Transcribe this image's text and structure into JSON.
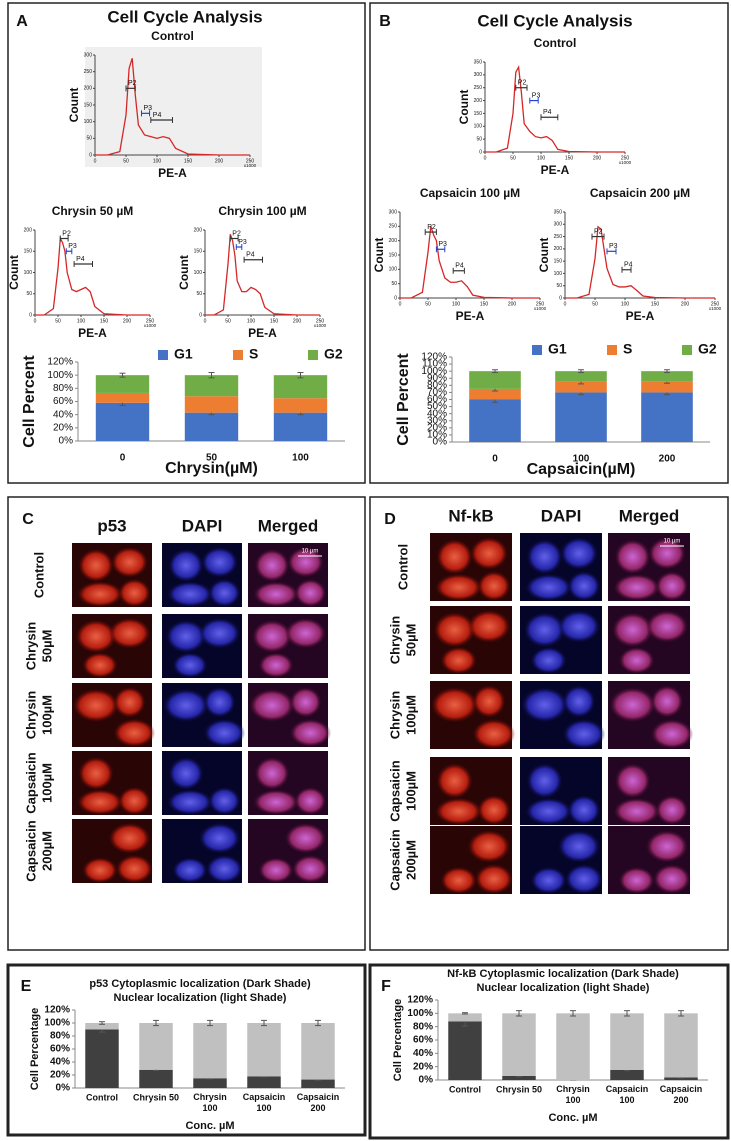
{
  "panels": [
    {
      "label": "A",
      "heading": "Cell Cycle Analysis"
    },
    {
      "label": "B",
      "heading": "Cell Cycle Analysis"
    },
    {
      "label": "C"
    },
    {
      "label": "D"
    },
    {
      "label": "E"
    },
    {
      "label": "F"
    }
  ],
  "chart_data": [
    {
      "type": "line",
      "title": "Control",
      "x_label": "PE-A",
      "y_label": "Count",
      "x_scale_label": "x1000",
      "color": "#d62728",
      "background": "#efefef",
      "x": [
        0,
        20,
        40,
        50,
        55,
        60,
        65,
        70,
        80,
        90,
        100,
        110,
        120,
        130,
        150,
        200,
        250
      ],
      "values": [
        0,
        0,
        10,
        120,
        260,
        290,
        180,
        90,
        60,
        55,
        50,
        55,
        50,
        20,
        3,
        0,
        0
      ],
      "xlim": [
        0,
        250
      ],
      "xticks": [
        0,
        50,
        100,
        150,
        200,
        250
      ],
      "ylim": [
        0,
        300
      ],
      "yticks": [
        0,
        50,
        100,
        150,
        200,
        250,
        300
      ],
      "gates": [
        {
          "label": "P2",
          "range": [
            50,
            65
          ],
          "y": 200,
          "color": "#333333"
        },
        {
          "label": "P3",
          "range": [
            75,
            88
          ],
          "y": 125,
          "color": "#2244cc"
        },
        {
          "label": "P4",
          "range": [
            90,
            125
          ],
          "y": 105,
          "color": "#333333"
        }
      ]
    },
    {
      "type": "line",
      "title": "Chrysin 50 µM",
      "x_label": "PE-A",
      "y_label": "Count",
      "x_scale_label": "x1000",
      "color": "#d62728",
      "x": [
        0,
        20,
        40,
        50,
        55,
        60,
        65,
        70,
        80,
        90,
        100,
        110,
        120,
        130,
        150,
        200,
        250
      ],
      "values": [
        0,
        0,
        15,
        110,
        180,
        170,
        150,
        100,
        60,
        55,
        60,
        65,
        55,
        20,
        3,
        0,
        0
      ],
      "xlim": [
        0,
        250
      ],
      "xticks": [
        0,
        50,
        100,
        150,
        200,
        250
      ],
      "ylim": [
        0,
        200
      ],
      "yticks": [
        0,
        50,
        100,
        150,
        200
      ],
      "gates": [
        {
          "label": "P2",
          "range": [
            55,
            72
          ],
          "y": 180,
          "color": "#333333"
        },
        {
          "label": "P3",
          "range": [
            68,
            80
          ],
          "y": 150,
          "color": "#2244cc"
        },
        {
          "label": "P4",
          "range": [
            85,
            125
          ],
          "y": 120,
          "color": "#333333"
        }
      ]
    },
    {
      "type": "line",
      "title": "Chrysin 100 µM",
      "x_label": "PE-A",
      "y_label": "Count",
      "x_scale_label": "x1000",
      "color": "#d62728",
      "x": [
        0,
        20,
        40,
        50,
        55,
        60,
        65,
        70,
        80,
        90,
        100,
        110,
        120,
        130,
        150,
        200,
        250
      ],
      "values": [
        0,
        0,
        12,
        120,
        190,
        175,
        140,
        80,
        55,
        55,
        65,
        60,
        50,
        18,
        3,
        0,
        0
      ],
      "xlim": [
        0,
        250
      ],
      "xticks": [
        0,
        50,
        100,
        150,
        200,
        250
      ],
      "ylim": [
        0,
        200
      ],
      "yticks": [
        0,
        50,
        100,
        150,
        200
      ],
      "gates": [
        {
          "label": "P2",
          "range": [
            55,
            72
          ],
          "y": 180,
          "color": "#333333"
        },
        {
          "label": "P3",
          "range": [
            68,
            80
          ],
          "y": 160,
          "color": "#2244cc"
        },
        {
          "label": "P4",
          "range": [
            85,
            125
          ],
          "y": 130,
          "color": "#333333"
        }
      ]
    },
    {
      "type": "bar",
      "stacked": true,
      "x_label": "Chrysin(µM)",
      "y_label": "Cell Percent",
      "categories": [
        "0",
        "50",
        "100"
      ],
      "series": [
        {
          "name": "G1",
          "color": "#4472c4",
          "values": [
            58,
            43,
            43
          ],
          "errors": [
            4,
            3,
            3
          ]
        },
        {
          "name": "S",
          "color": "#ed7d31",
          "values": [
            15,
            25,
            22
          ]
        },
        {
          "name": "G2",
          "color": "#70ad47",
          "values": [
            27,
            32,
            35
          ],
          "errors": [
            3,
            4,
            4
          ]
        }
      ],
      "ylim": [
        0,
        120
      ],
      "yticks": [
        {
          "value": 0,
          "label": "0%"
        },
        {
          "value": 20,
          "label": "20%"
        },
        {
          "value": 40,
          "label": "40%"
        },
        {
          "value": 60,
          "label": "60%"
        },
        {
          "value": 80,
          "label": "80%"
        },
        {
          "value": 100,
          "label": "100%"
        },
        {
          "value": 120,
          "label": "120%"
        }
      ]
    },
    {
      "type": "line",
      "title": "Control",
      "x_label": "PE-A",
      "y_label": "Count",
      "x_scale_label": "x1000",
      "color": "#d62728",
      "x": [
        0,
        20,
        40,
        50,
        55,
        60,
        65,
        70,
        80,
        90,
        100,
        110,
        120,
        130,
        150,
        200,
        250
      ],
      "values": [
        0,
        0,
        15,
        150,
        310,
        330,
        230,
        110,
        80,
        60,
        55,
        60,
        45,
        10,
        2,
        0,
        0
      ],
      "xlim": [
        0,
        250
      ],
      "xticks": [
        0,
        50,
        100,
        150,
        200,
        250
      ],
      "ylim": [
        0,
        350
      ],
      "yticks": [
        0,
        50,
        100,
        150,
        200,
        250,
        300,
        350
      ],
      "gates": [
        {
          "label": "P2",
          "range": [
            55,
            75
          ],
          "y": 250,
          "color": "#333333"
        },
        {
          "label": "P3",
          "range": [
            80,
            95
          ],
          "y": 200,
          "color": "#2244cc"
        },
        {
          "label": "P4",
          "range": [
            100,
            130
          ],
          "y": 135,
          "color": "#333333"
        }
      ]
    },
    {
      "type": "line",
      "title": "Capsaicin 100 µM",
      "x_label": "PE-A",
      "y_label": "Count",
      "x_scale_label": "x1000",
      "color": "#d62728",
      "x": [
        0,
        20,
        40,
        50,
        55,
        60,
        65,
        70,
        80,
        90,
        100,
        110,
        120,
        130,
        150,
        200,
        250
      ],
      "values": [
        0,
        0,
        20,
        160,
        250,
        220,
        200,
        130,
        70,
        55,
        55,
        60,
        40,
        10,
        2,
        0,
        0
      ],
      "xlim": [
        0,
        250
      ],
      "xticks": [
        0,
        50,
        100,
        150,
        200,
        250
      ],
      "ylim": [
        0,
        300
      ],
      "yticks": [
        0,
        50,
        100,
        150,
        200,
        250,
        300
      ],
      "gates": [
        {
          "label": "P2",
          "range": [
            45,
            65
          ],
          "y": 230,
          "color": "#333333"
        },
        {
          "label": "P3",
          "range": [
            65,
            80
          ],
          "y": 170,
          "color": "#2244cc"
        },
        {
          "label": "P4",
          "range": [
            95,
            115
          ],
          "y": 95,
          "color": "#333333"
        }
      ]
    },
    {
      "type": "line",
      "title": "Capsaicin 200 µM",
      "x_label": "PE-A",
      "y_label": "Count",
      "x_scale_label": "x1000",
      "color": "#d62728",
      "x": [
        0,
        20,
        40,
        50,
        55,
        60,
        65,
        70,
        80,
        90,
        100,
        110,
        120,
        130,
        150,
        200,
        250
      ],
      "values": [
        0,
        0,
        15,
        160,
        290,
        280,
        200,
        120,
        55,
        45,
        45,
        50,
        30,
        8,
        2,
        0,
        0
      ],
      "xlim": [
        0,
        250
      ],
      "xticks": [
        0,
        50,
        100,
        150,
        200,
        250
      ],
      "ylim": [
        0,
        350
      ],
      "yticks": [
        0,
        50,
        100,
        150,
        200,
        250,
        300,
        350
      ],
      "gates": [
        {
          "label": "P2",
          "range": [
            45,
            65
          ],
          "y": 250,
          "color": "#333333"
        },
        {
          "label": "P3",
          "range": [
            70,
            85
          ],
          "y": 190,
          "color": "#2244cc"
        },
        {
          "label": "P4",
          "range": [
            95,
            110
          ],
          "y": 115,
          "color": "#333333"
        }
      ]
    },
    {
      "type": "bar",
      "stacked": true,
      "x_label": "Capsaicin(µM)",
      "y_label": "Cell Percent",
      "categories": [
        "0",
        "100",
        "200"
      ],
      "series": [
        {
          "name": "G1",
          "color": "#4472c4",
          "values": [
            60,
            70,
            70
          ],
          "errors": [
            4,
            3,
            3
          ]
        },
        {
          "name": "S",
          "color": "#ed7d31",
          "values": [
            15,
            15,
            15
          ],
          "errors": [
            3,
            3,
            2
          ]
        },
        {
          "name": "G2",
          "color": "#70ad47",
          "values": [
            25,
            15,
            15
          ],
          "errors": [
            2,
            2,
            2
          ]
        }
      ],
      "ylim": [
        0,
        120
      ],
      "yticks": [
        {
          "value": 0,
          "label": "0%"
        },
        {
          "value": 10,
          "label": "10%"
        },
        {
          "value": 20,
          "label": "20%"
        },
        {
          "value": 30,
          "label": "30%"
        },
        {
          "value": 40,
          "label": "40%"
        },
        {
          "value": 50,
          "label": "50%"
        },
        {
          "value": 60,
          "label": "60%"
        },
        {
          "value": 70,
          "label": "70%"
        },
        {
          "value": 80,
          "label": "80%"
        },
        {
          "value": 90,
          "label": "90%"
        },
        {
          "value": 100,
          "label": "100%"
        },
        {
          "value": 110,
          "label": "110%"
        },
        {
          "value": 120,
          "label": "120%"
        }
      ]
    },
    {
      "type": "bar",
      "stacked": true,
      "title": "p53 Cytoplasmic localization (Dark Shade)",
      "subtitle": "Nuclear localization (light Shade)",
      "x_label": "Conc. µM",
      "y_label": "Cell Percentage",
      "categories": [
        "Control",
        "Chrysin 50",
        "Chrysin 100",
        "Capsaicin 100",
        "Capsaicin 200"
      ],
      "series": [
        {
          "color": "#404040",
          "values": [
            90,
            28,
            15,
            18,
            13
          ],
          "errors": [
            4,
            1,
            1,
            1,
            1
          ]
        },
        {
          "color": "#c0c0c0",
          "values": [
            10,
            72,
            85,
            82,
            87
          ],
          "errors": [
            2,
            4,
            4,
            4,
            4
          ]
        }
      ],
      "ylim": [
        0,
        120
      ],
      "yticks": [
        {
          "value": 0,
          "label": "0%"
        },
        {
          "value": 20,
          "label": "20%"
        },
        {
          "value": 40,
          "label": "40%"
        },
        {
          "value": 60,
          "label": "60%"
        },
        {
          "value": 80,
          "label": "80%"
        },
        {
          "value": 100,
          "label": "100%"
        },
        {
          "value": 120,
          "label": "120%"
        }
      ]
    },
    {
      "type": "bar",
      "stacked": true,
      "title": "Nf-kB Cytoplasmic localization (Dark Shade)",
      "subtitle": "Nuclear localization  (light Shade)",
      "x_label": "Conc. µM",
      "y_label": "Cell Percentage",
      "categories": [
        "Control",
        "Chrysin 50",
        "Chrysin 100",
        "Capsaicin 100",
        "Capsaicin 200"
      ],
      "series": [
        {
          "color": "#404040",
          "values": [
            88,
            6,
            0,
            15,
            4
          ],
          "errors": [
            7,
            1,
            0,
            1,
            1
          ]
        },
        {
          "color": "#c0c0c0",
          "values": [
            12,
            94,
            100,
            85,
            96
          ],
          "errors": [
            1,
            4,
            4,
            4,
            4
          ]
        }
      ],
      "ylim": [
        0,
        120
      ],
      "yticks": [
        {
          "value": 0,
          "label": "0%"
        },
        {
          "value": 20,
          "label": "20%"
        },
        {
          "value": 40,
          "label": "40%"
        },
        {
          "value": 60,
          "label": "60%"
        },
        {
          "value": 80,
          "label": "80%"
        },
        {
          "value": 100,
          "label": "100%"
        },
        {
          "value": 120,
          "label": "120%"
        }
      ]
    }
  ],
  "image_panels": [
    {
      "columns": [
        "p53",
        "DAPI",
        "Merged"
      ],
      "rows": [
        [
          "Control"
        ],
        [
          "Chrysin",
          "50µM"
        ],
        [
          "Chrysin",
          "100µM"
        ],
        [
          "Capsaicin",
          "100µM"
        ],
        [
          "Capsaicin",
          "200µM"
        ]
      ],
      "scale_bar": "10 µm"
    },
    {
      "columns": [
        "Nf-kB",
        "DAPI",
        "Merged"
      ],
      "rows": [
        [
          "Control"
        ],
        [
          "Chrysin",
          "50µM"
        ],
        [
          "Chrysin",
          "100µM"
        ],
        [
          "Capsaicin",
          "100µM"
        ],
        [
          "Capsaicin",
          "200µM"
        ]
      ],
      "scale_bar": "10 µm"
    }
  ]
}
